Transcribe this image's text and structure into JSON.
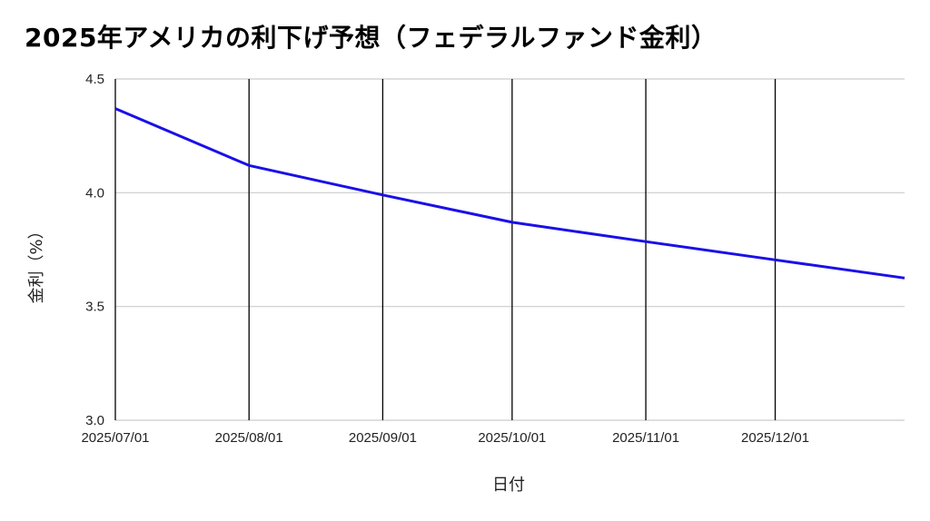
{
  "chart_data": {
    "type": "line",
    "title": "2025年アメリカの利下げ予想（フェデラルファンド金利）",
    "xlabel": "日付",
    "ylabel": "金利（%）",
    "x": [
      "2025-07-01",
      "2025-08-01",
      "2025-09-01",
      "2025-10-01",
      "2025-11-01",
      "2025-12-01",
      "2025-12-31"
    ],
    "x_tick_labels": [
      "2025/07/01",
      "2025/08/01",
      "2025/09/01",
      "2025/10/01",
      "2025/11/01",
      "2025/12/01"
    ],
    "ylim": [
      3.0,
      4.5
    ],
    "y_ticks": [
      3.0,
      3.5,
      4.0,
      4.5
    ],
    "y_tick_labels": [
      "3.0",
      "3.5",
      "4.0",
      "4.5"
    ],
    "series": [
      {
        "values": [
          4.37,
          4.12,
          3.99,
          3.87,
          3.785,
          3.705,
          3.625
        ],
        "color": "#1a10e8"
      }
    ],
    "grid": true,
    "vertical_gridlines_color": "#000000",
    "horizontal_gridlines_color": "#cccccc"
  }
}
